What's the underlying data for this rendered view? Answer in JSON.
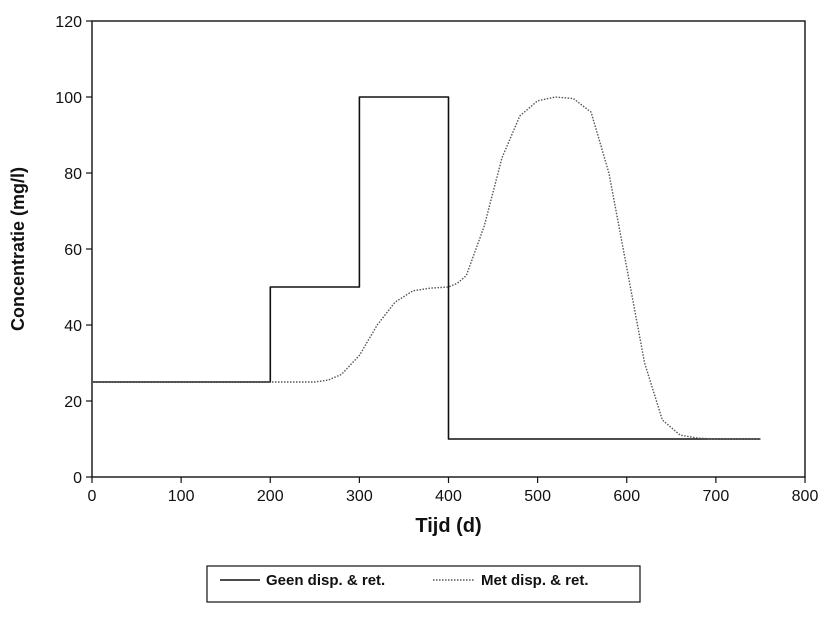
{
  "chart_data": {
    "type": "line",
    "title": "",
    "xlabel": "Tijd (d)",
    "ylabel": "Concentratie (mg/l)",
    "xlim": [
      0,
      800
    ],
    "ylim": [
      0,
      120
    ],
    "x_ticks": [
      0,
      100,
      200,
      300,
      400,
      500,
      600,
      700,
      800
    ],
    "y_ticks": [
      0,
      20,
      40,
      60,
      80,
      100,
      120
    ],
    "x_tick_labels": [
      "0",
      "100",
      "200",
      "300",
      "400",
      "500",
      "600",
      "700",
      "800"
    ],
    "y_tick_labels": [
      "0",
      "20",
      "40",
      "60",
      "80",
      "100",
      "120"
    ],
    "grid": false,
    "legend_position": "bottom-center",
    "series": [
      {
        "name": "Geen disp. & ret.",
        "style": "solid",
        "color": "#111111",
        "x": [
          0,
          200,
          200,
          300,
          300,
          400,
          400,
          750
        ],
        "y": [
          25,
          25,
          50,
          50,
          100,
          100,
          10,
          10
        ]
      },
      {
        "name": "Met disp. & ret.",
        "style": "dotted",
        "color": "#555555",
        "x": [
          0,
          200,
          250,
          265,
          280,
          300,
          320,
          340,
          360,
          380,
          400,
          410,
          420,
          440,
          460,
          480,
          500,
          520,
          540,
          560,
          580,
          600,
          620,
          640,
          660,
          680,
          700,
          750
        ],
        "y": [
          25,
          25,
          25,
          25.5,
          27,
          32,
          40,
          46,
          49,
          49.7,
          50,
          51,
          53,
          66,
          84,
          95,
          99,
          100,
          99.6,
          96,
          80,
          55,
          30,
          15,
          11,
          10.2,
          10,
          10
        ]
      }
    ]
  }
}
